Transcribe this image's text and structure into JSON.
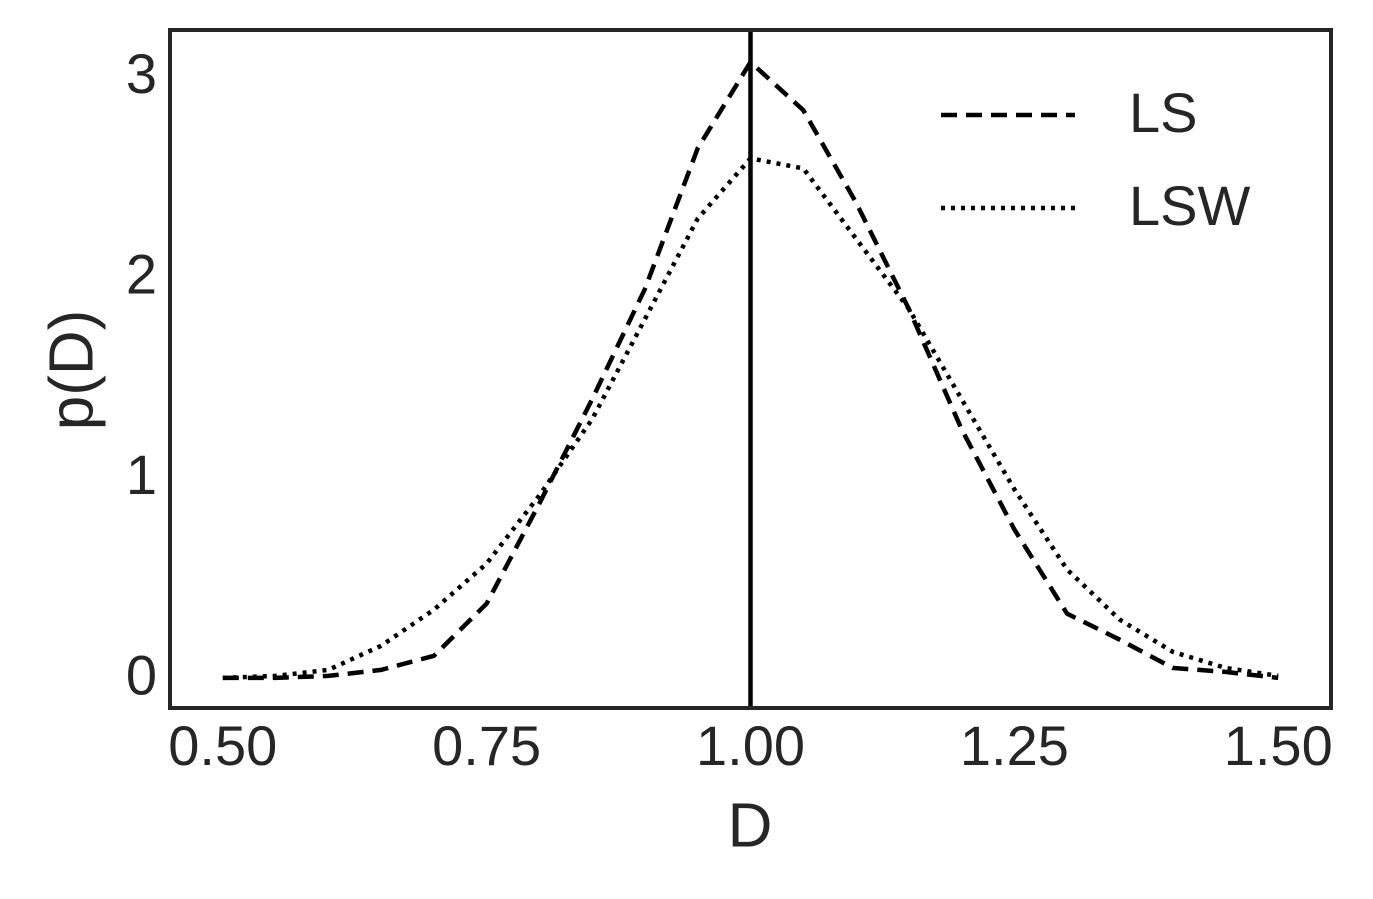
{
  "chart_data": {
    "type": "line",
    "x_label": "D",
    "y_label": "p(D)",
    "x": [
      0.5,
      0.55,
      0.6,
      0.65,
      0.7,
      0.75,
      0.8,
      0.85,
      0.9,
      0.95,
      1.0,
      1.05,
      1.1,
      1.15,
      1.2,
      1.25,
      1.3,
      1.35,
      1.4,
      1.45,
      1.5
    ],
    "series": [
      {
        "name": "LS",
        "color": "#000000",
        "style": "dashed",
        "values": [
          0.01,
          0.01,
          0.02,
          0.05,
          0.12,
          0.38,
          0.88,
          1.4,
          1.95,
          2.65,
          3.08,
          2.84,
          2.38,
          1.85,
          1.25,
          0.75,
          0.33,
          0.2,
          0.06,
          0.04,
          0.01
        ]
      },
      {
        "name": "LSW",
        "color": "#000000",
        "style": "dotted",
        "values": [
          0.01,
          0.02,
          0.05,
          0.17,
          0.35,
          0.58,
          0.92,
          1.3,
          1.8,
          2.3,
          2.6,
          2.55,
          2.2,
          1.85,
          1.4,
          0.95,
          0.55,
          0.3,
          0.14,
          0.06,
          0.02
        ]
      }
    ],
    "vline": 1.0,
    "xlim": [
      0.45,
      1.55
    ],
    "ylim": [
      -0.14,
      3.24
    ],
    "xticks": [
      {
        "value": 0.5,
        "label": "0.50"
      },
      {
        "value": 0.75,
        "label": "0.75"
      },
      {
        "value": 1.0,
        "label": "1.00"
      },
      {
        "value": 1.25,
        "label": "1.25"
      },
      {
        "value": 1.5,
        "label": "1.50"
      }
    ],
    "yticks": [
      0,
      1,
      2,
      3
    ],
    "grid": false,
    "legend": "upper right"
  }
}
